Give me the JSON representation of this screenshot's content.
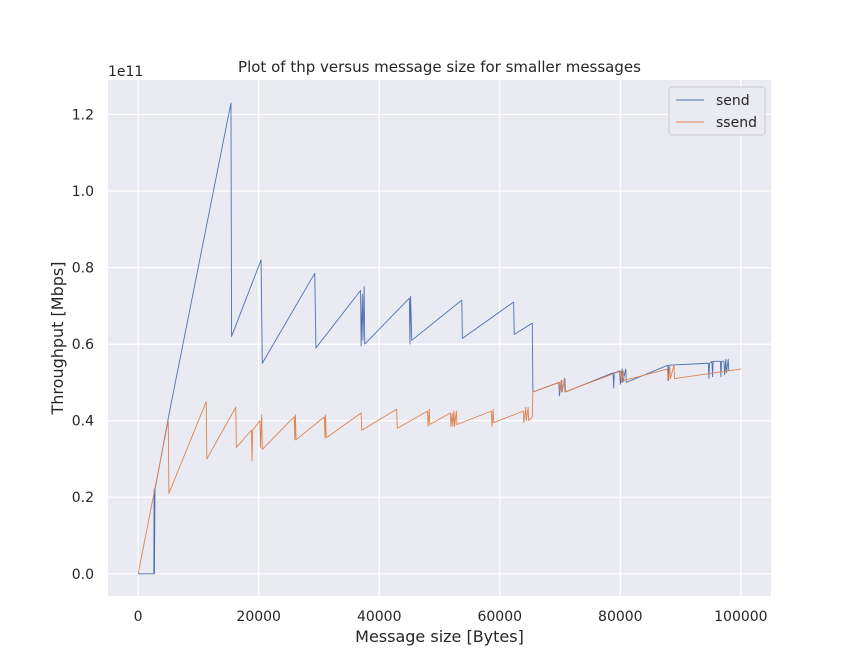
{
  "chart_data": {
    "type": "line",
    "title": "Plot of thp versus message size for smaller messages",
    "xlabel": "Message size [Bytes]",
    "ylabel": "Throughput [Mbps]",
    "y_offset_label": "1e11",
    "xlim": [
      -5000,
      105000
    ],
    "ylim": [
      -5.8,
      129
    ],
    "y_unit_scale": "1e9",
    "x_ticks": [
      0,
      20000,
      40000,
      60000,
      80000,
      100000
    ],
    "x_tick_labels": [
      "0",
      "20000",
      "40000",
      "60000",
      "80000",
      "100000"
    ],
    "y_ticks": [
      0,
      20,
      40,
      60,
      80,
      100,
      120
    ],
    "y_tick_labels": [
      "0.0",
      "0.2",
      "0.4",
      "0.6",
      "0.8",
      "1.0",
      "1.2"
    ],
    "grid": true,
    "legend_position": "top-right",
    "series": [
      {
        "name": "send",
        "color": "#4c72b0",
        "points": [
          [
            0,
            0
          ],
          [
            2600,
            0
          ],
          [
            2650,
            22
          ],
          [
            2700,
            0
          ],
          [
            2800,
            22
          ],
          [
            5100,
            41.5
          ],
          [
            15400,
            123
          ],
          [
            15500,
            62
          ],
          [
            20400,
            82
          ],
          [
            20600,
            55
          ],
          [
            29300,
            78.5
          ],
          [
            29500,
            59
          ],
          [
            36900,
            74
          ],
          [
            37000,
            59.5
          ],
          [
            37200,
            73
          ],
          [
            37300,
            61
          ],
          [
            37500,
            75
          ],
          [
            37600,
            60
          ],
          [
            45000,
            72
          ],
          [
            45100,
            60
          ],
          [
            45200,
            72.5
          ],
          [
            45400,
            61
          ],
          [
            53700,
            71.5
          ],
          [
            53800,
            61.5
          ],
          [
            62300,
            71
          ],
          [
            62400,
            62.5
          ],
          [
            65400,
            65.5
          ],
          [
            65500,
            47.5
          ],
          [
            69800,
            50
          ],
          [
            69900,
            46.5
          ],
          [
            70200,
            50.5
          ],
          [
            70300,
            47.5
          ],
          [
            70800,
            51
          ],
          [
            70900,
            47.5
          ],
          [
            78800,
            52.5
          ],
          [
            78900,
            48.5
          ],
          [
            79000,
            52.5
          ],
          [
            79900,
            53
          ],
          [
            80000,
            49.5
          ],
          [
            80300,
            53.5
          ],
          [
            80400,
            50
          ],
          [
            80900,
            53.5
          ],
          [
            81000,
            50
          ],
          [
            87900,
            54.5
          ],
          [
            88000,
            50.5
          ],
          [
            88100,
            54.5
          ],
          [
            94600,
            55
          ],
          [
            94700,
            51
          ],
          [
            94800,
            55
          ],
          [
            95200,
            55.5
          ],
          [
            95300,
            51.5
          ],
          [
            95400,
            55.5
          ],
          [
            96600,
            55.5
          ],
          [
            96700,
            51.5
          ],
          [
            96800,
            55.5
          ],
          [
            97200,
            55.5
          ],
          [
            97300,
            52
          ],
          [
            97500,
            56
          ],
          [
            97600,
            52.5
          ],
          [
            97900,
            56
          ],
          [
            98000,
            53
          ]
        ]
      },
      {
        "name": "ssend",
        "color": "#dd8452",
        "points": [
          [
            0,
            0
          ],
          [
            5000,
            40
          ],
          [
            5100,
            21
          ],
          [
            11300,
            45
          ],
          [
            11400,
            30
          ],
          [
            16200,
            43.5
          ],
          [
            16300,
            33
          ],
          [
            18800,
            37.5
          ],
          [
            18900,
            29.5
          ],
          [
            19000,
            37.5
          ],
          [
            20200,
            40
          ],
          [
            20300,
            33
          ],
          [
            20500,
            41.5
          ],
          [
            20600,
            32.5
          ],
          [
            25900,
            41
          ],
          [
            26000,
            35
          ],
          [
            26100,
            41.5
          ],
          [
            26200,
            35
          ],
          [
            30900,
            41
          ],
          [
            31000,
            35.5
          ],
          [
            31100,
            41.5
          ],
          [
            31200,
            35.5
          ],
          [
            37000,
            42
          ],
          [
            37100,
            37.5
          ],
          [
            42900,
            43
          ],
          [
            43000,
            38
          ],
          [
            48000,
            42.5
          ],
          [
            48100,
            38.5
          ],
          [
            48300,
            43
          ],
          [
            48400,
            39
          ],
          [
            51800,
            42
          ],
          [
            51900,
            38.5
          ],
          [
            52100,
            42
          ],
          [
            52200,
            38.5
          ],
          [
            52400,
            42.5
          ],
          [
            52500,
            38.5
          ],
          [
            52800,
            42.5
          ],
          [
            52900,
            39
          ],
          [
            58600,
            42.5
          ],
          [
            58700,
            38.5
          ],
          [
            58900,
            43
          ],
          [
            59000,
            39.5
          ],
          [
            63900,
            42.5
          ],
          [
            64000,
            39.5
          ],
          [
            64300,
            43.5
          ],
          [
            64400,
            40
          ],
          [
            64700,
            43.5
          ],
          [
            64800,
            40
          ],
          [
            65400,
            41
          ],
          [
            65500,
            47.5
          ],
          [
            69900,
            50
          ],
          [
            70000,
            47.5
          ],
          [
            70300,
            50.5
          ],
          [
            70400,
            47.5
          ],
          [
            70700,
            51
          ],
          [
            70800,
            47.5
          ],
          [
            80100,
            53
          ],
          [
            80200,
            50
          ],
          [
            80500,
            53
          ],
          [
            80600,
            50.5
          ],
          [
            87800,
            53.5
          ],
          [
            87900,
            50.5
          ],
          [
            88200,
            54
          ],
          [
            88300,
            51
          ],
          [
            88900,
            54.5
          ],
          [
            89000,
            51
          ],
          [
            100000,
            53.5
          ]
        ]
      }
    ]
  }
}
